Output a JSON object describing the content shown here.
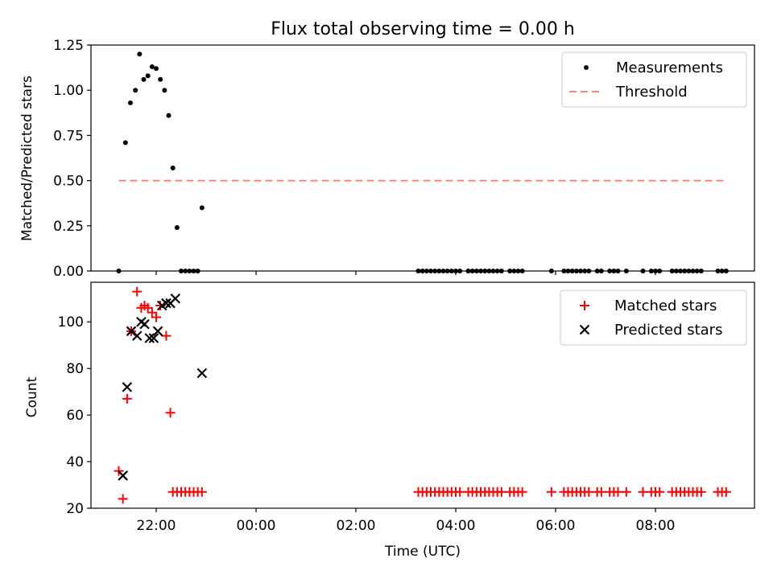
{
  "title": "Flux total observing time = 0.00 h",
  "colors": {
    "measurements": "#000000",
    "threshold": "#ff8080",
    "matched": "#ff0000",
    "predicted": "#000000"
  },
  "chart_data": [
    {
      "type": "scatter",
      "ylabel": "Matched/Predicted stars",
      "xlabel": "",
      "ylim": [
        0.0,
        1.25
      ],
      "yticks": [
        "0.00",
        "0.25",
        "0.50",
        "0.75",
        "1.00",
        "1.25"
      ],
      "xticks_hours": [
        22,
        24,
        26,
        28,
        30,
        32
      ],
      "legend_position": "top-right",
      "legend": [
        "Measurements",
        "Threshold"
      ],
      "threshold": {
        "name": "Threshold",
        "y": 0.5,
        "x_start": "21:15",
        "x_end": "09:25"
      },
      "series": [
        {
          "name": "Measurements",
          "x": [
            "21:15",
            "21:23",
            "21:29",
            "21:35",
            "21:40",
            "21:45",
            "21:50",
            "21:55",
            "22:00",
            "22:05",
            "22:10",
            "22:15",
            "22:20",
            "22:25",
            "22:30",
            "22:35",
            "22:40",
            "22:45",
            "22:50",
            "22:55",
            "03:15",
            "03:20",
            "03:25",
            "03:30",
            "03:35",
            "03:40",
            "03:45",
            "03:50",
            "03:55",
            "04:00",
            "04:05",
            "04:15",
            "04:20",
            "04:25",
            "04:30",
            "04:35",
            "04:40",
            "04:45",
            "04:50",
            "04:55",
            "05:05",
            "05:10",
            "05:15",
            "05:20",
            "05:55",
            "06:10",
            "06:15",
            "06:20",
            "06:25",
            "06:30",
            "06:35",
            "06:40",
            "06:50",
            "06:55",
            "07:05",
            "07:10",
            "07:15",
            "07:25",
            "07:45",
            "07:55",
            "08:00",
            "08:05",
            "08:20",
            "08:25",
            "08:30",
            "08:35",
            "08:40",
            "08:45",
            "08:50",
            "08:55",
            "09:15",
            "09:20",
            "09:25"
          ],
          "y": [
            0.0,
            0.71,
            0.93,
            1.0,
            1.2,
            1.06,
            1.08,
            1.13,
            1.12,
            1.06,
            1.0,
            0.86,
            0.57,
            0.24,
            0.0,
            0.0,
            0.0,
            0.0,
            0.0,
            0.35,
            0,
            0,
            0,
            0,
            0,
            0,
            0,
            0,
            0,
            0,
            0,
            0,
            0,
            0,
            0,
            0,
            0,
            0,
            0,
            0,
            0,
            0,
            0,
            0,
            0,
            0,
            0,
            0,
            0,
            0,
            0,
            0,
            0,
            0,
            0,
            0,
            0,
            0,
            0,
            0,
            0,
            0,
            0,
            0,
            0,
            0,
            0,
            0,
            0,
            0,
            0,
            0,
            0
          ]
        }
      ]
    },
    {
      "type": "scatter",
      "ylabel": "Count",
      "xlabel": "Time (UTC)",
      "ylim": [
        20,
        117
      ],
      "yticks": [
        "20",
        "40",
        "60",
        "80",
        "100"
      ],
      "xtick_labels": [
        "22:00",
        "00:00",
        "02:00",
        "04:00",
        "06:00",
        "08:00"
      ],
      "xticks_hours": [
        22,
        24,
        26,
        28,
        30,
        32
      ],
      "legend_position": "top-right",
      "legend": [
        "Matched stars",
        "Predicted stars"
      ],
      "series": [
        {
          "name": "Matched stars",
          "x": [
            "21:15",
            "21:20",
            "21:25",
            "21:30",
            "21:37",
            "21:42",
            "21:46",
            "21:50",
            "21:55",
            "22:00",
            "22:05",
            "22:12",
            "22:17",
            "22:20",
            "22:25",
            "22:30",
            "22:35",
            "22:40",
            "22:45",
            "22:50",
            "22:55",
            "03:15",
            "03:20",
            "03:25",
            "03:30",
            "03:35",
            "03:40",
            "03:45",
            "03:50",
            "03:55",
            "04:00",
            "04:05",
            "04:15",
            "04:20",
            "04:25",
            "04:30",
            "04:35",
            "04:40",
            "04:45",
            "04:50",
            "04:55",
            "05:05",
            "05:10",
            "05:15",
            "05:20",
            "05:55",
            "06:10",
            "06:15",
            "06:20",
            "06:25",
            "06:30",
            "06:35",
            "06:40",
            "06:50",
            "06:55",
            "07:05",
            "07:10",
            "07:15",
            "07:25",
            "07:45",
            "07:55",
            "08:00",
            "08:05",
            "08:20",
            "08:25",
            "08:30",
            "08:35",
            "08:40",
            "08:45",
            "08:50",
            "08:55",
            "09:15",
            "09:20",
            "09:25"
          ],
          "y": [
            36,
            24,
            67,
            96,
            113,
            106,
            107,
            106,
            104,
            102,
            107,
            94,
            61,
            27,
            27,
            27,
            27,
            27,
            27,
            27,
            27,
            27,
            27,
            27,
            27,
            27,
            27,
            27,
            27,
            27,
            27,
            27,
            27,
            27,
            27,
            27,
            27,
            27,
            27,
            27,
            27,
            27,
            27,
            27,
            27,
            27,
            27,
            27,
            27,
            27,
            27,
            27,
            27,
            27,
            27,
            27,
            27,
            27,
            27,
            27,
            27,
            27,
            27,
            27,
            27,
            27,
            27,
            27,
            27,
            27,
            27,
            27,
            27,
            27
          ]
        },
        {
          "name": "Predicted stars",
          "x": [
            "21:20",
            "21:25",
            "21:30",
            "21:37",
            "21:42",
            "21:46",
            "21:52",
            "21:57",
            "22:02",
            "22:07",
            "22:12",
            "22:17",
            "22:23",
            "22:55"
          ],
          "y": [
            34,
            72,
            96,
            94,
            100,
            99,
            93,
            93,
            96,
            107,
            108,
            108,
            110,
            78
          ]
        }
      ]
    }
  ]
}
